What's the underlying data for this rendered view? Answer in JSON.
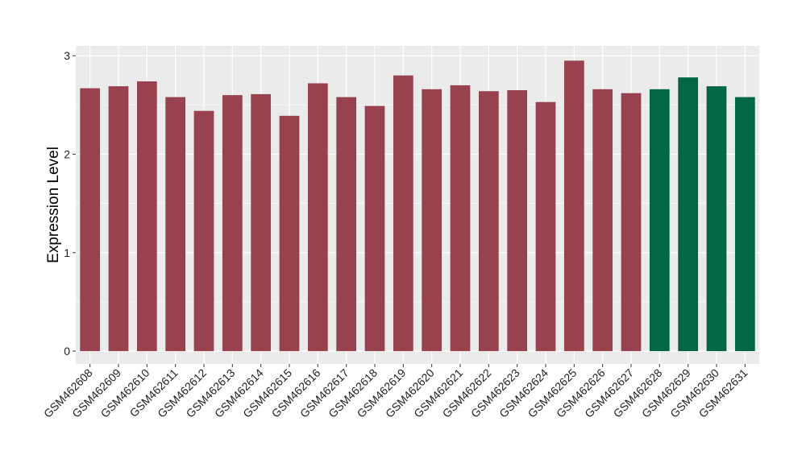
{
  "chart_data": {
    "type": "bar",
    "title": "",
    "xlabel": "",
    "ylabel": "Expression Level",
    "ylim": [
      -0.13,
      3.1
    ],
    "yticks": [
      0,
      1,
      2,
      3
    ],
    "grid": true,
    "background_color": "#EBEBEB",
    "gridline_color": "#FFFFFF",
    "categories": [
      "GSM462608",
      "GSM462609",
      "GSM462610",
      "GSM462611",
      "GSM462612",
      "GSM462613",
      "GSM462614",
      "GSM462615",
      "GSM462616",
      "GSM462617",
      "GSM462618",
      "GSM462619",
      "GSM462620",
      "GSM462621",
      "GSM462622",
      "GSM462623",
      "GSM462624",
      "GSM462625",
      "GSM462626",
      "GSM462627",
      "GSM462628",
      "GSM462629",
      "GSM462630",
      "GSM462631"
    ],
    "values": [
      2.67,
      2.69,
      2.74,
      2.58,
      2.44,
      2.6,
      2.61,
      2.39,
      2.72,
      2.58,
      2.49,
      2.8,
      2.66,
      2.7,
      2.64,
      2.65,
      2.53,
      2.95,
      2.66,
      2.62,
      2.66,
      2.78,
      2.69,
      2.58
    ],
    "bar_colors": [
      "#984250",
      "#984250",
      "#984250",
      "#984250",
      "#984250",
      "#984250",
      "#984250",
      "#984250",
      "#984250",
      "#984250",
      "#984250",
      "#984250",
      "#984250",
      "#984250",
      "#984250",
      "#984250",
      "#984250",
      "#984250",
      "#984250",
      "#984250",
      "#006643",
      "#006643",
      "#006643",
      "#006643"
    ]
  }
}
